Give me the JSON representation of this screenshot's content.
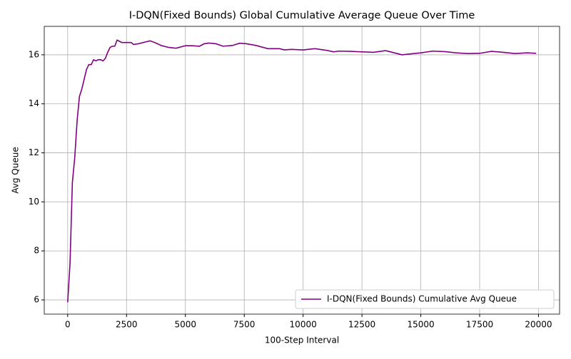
{
  "chart_data": {
    "type": "line",
    "title": "I-DQN(Fixed Bounds) Global Cumulative Average Queue Over Time",
    "x_label": "100-Step Interval",
    "y_label": "Avg Queue",
    "x": [
      0,
      100,
      200,
      300,
      400,
      500,
      600,
      700,
      800,
      900,
      1000,
      1100,
      1200,
      1300,
      1400,
      1500,
      1600,
      1700,
      1800,
      1900,
      2000,
      2100,
      2200,
      2300,
      2500,
      2700,
      2800,
      3000,
      3200,
      3500,
      3700,
      4000,
      4300,
      4600,
      5000,
      5300,
      5600,
      5800,
      6000,
      6300,
      6600,
      7000,
      7300,
      7600,
      8000,
      8500,
      9000,
      9200,
      9500,
      10000,
      10500,
      11000,
      11300,
      11500,
      12000,
      12500,
      13000,
      13500,
      14000,
      14200,
      14700,
      15000,
      15500,
      16000,
      16500,
      17000,
      17500,
      18000,
      18500,
      19000,
      19500,
      19900
    ],
    "series": [
      {
        "name": "I-DQN(Fixed Bounds) Cumulative Avg Queue",
        "color": "#800080",
        "values": [
          5.9,
          7.5,
          10.8,
          11.8,
          13.3,
          14.3,
          14.6,
          15.0,
          15.4,
          15.6,
          15.6,
          15.8,
          15.75,
          15.8,
          15.8,
          15.75,
          15.85,
          16.1,
          16.3,
          16.35,
          16.35,
          16.6,
          16.55,
          16.5,
          16.5,
          16.5,
          16.42,
          16.45,
          16.5,
          16.57,
          16.5,
          16.37,
          16.3,
          16.27,
          16.37,
          16.37,
          16.35,
          16.45,
          16.48,
          16.45,
          16.35,
          16.38,
          16.47,
          16.45,
          16.38,
          16.25,
          16.25,
          16.2,
          16.22,
          16.2,
          16.25,
          16.18,
          16.12,
          16.15,
          16.14,
          16.12,
          16.1,
          16.17,
          16.05,
          16.0,
          16.05,
          16.08,
          16.15,
          16.13,
          16.08,
          16.05,
          16.06,
          16.14,
          16.1,
          16.05,
          16.08,
          16.06
        ]
      }
    ],
    "xlim": [
      -995,
      20895
    ],
    "ylim": [
      5.42,
      17.16
    ],
    "xticks": [
      0,
      2500,
      5000,
      7500,
      10000,
      12500,
      15000,
      17500,
      20000
    ],
    "yticks": [
      6,
      8,
      10,
      12,
      14,
      16
    ],
    "grid": true,
    "legend": "lower right"
  }
}
